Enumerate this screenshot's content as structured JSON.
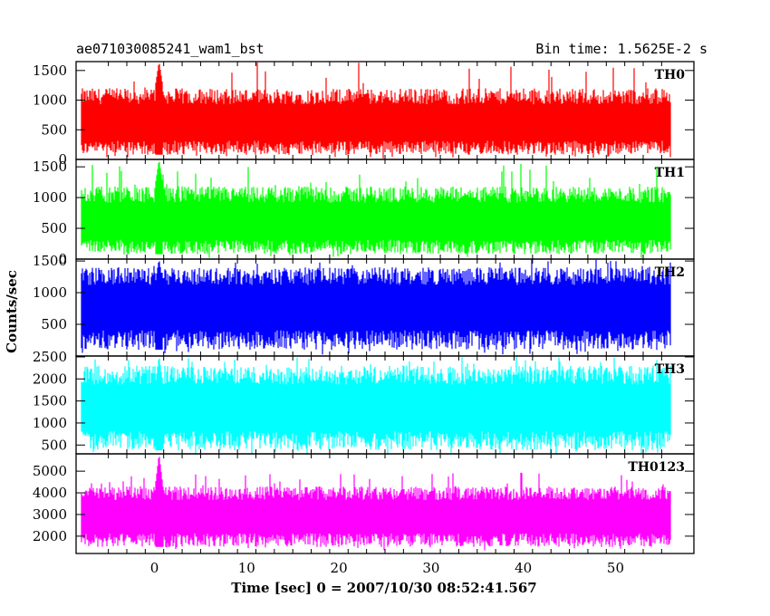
{
  "header": {
    "title": "ae071030085241_wam1_bst",
    "bin_time": "Bin time: 1.5625E-2 s"
  },
  "chart_data": {
    "type": "line",
    "title": "ae071030085241_wam1_bst",
    "xlabel": "Time [sec] 0 = 2007/10/30 08:52:41.567",
    "ylabel": "Counts/sec",
    "xlim": [
      -8.5,
      58.5
    ],
    "x_data_range": [
      -8,
      56
    ],
    "bin_time_s": 0.015625,
    "x_ticks": [
      0,
      10,
      20,
      30,
      40,
      50
    ],
    "panels": [
      {
        "name": "TH0",
        "color": "#ff0000",
        "ylim": [
          0,
          1650
        ],
        "y_ticks": [
          0,
          500,
          1000,
          1500
        ],
        "mean": 600,
        "band_low": 80,
        "band_high": 1200,
        "spike_max": 1650,
        "burst_x": 0.5,
        "burst_peak": 1650
      },
      {
        "name": "TH1",
        "color": "#00ff00",
        "ylim": [
          0,
          1620
        ],
        "y_ticks": [
          0,
          500,
          1000,
          1500
        ],
        "mean": 600,
        "band_low": 80,
        "band_high": 1180,
        "spike_max": 1600,
        "burst_x": 0.5,
        "burst_peak": 1620
      },
      {
        "name": "TH2",
        "color": "#0000ff",
        "ylim": [
          0,
          1530
        ],
        "y_ticks": [
          500,
          1000,
          1500
        ],
        "mean": 780,
        "band_low": 100,
        "band_high": 1400,
        "spike_max": 1530,
        "burst_x": 0.5,
        "burst_peak": 1530
      },
      {
        "name": "TH3",
        "color": "#00ffff",
        "ylim": [
          300,
          2520
        ],
        "y_ticks": [
          500,
          1000,
          1500,
          2000,
          2500
        ],
        "mean": 1350,
        "band_low": 380,
        "band_high": 2300,
        "spike_max": 2520,
        "burst_x": 0.5,
        "burst_peak": 2520
      },
      {
        "name": "TH0123",
        "color": "#ff00ff",
        "ylim": [
          1200,
          5800
        ],
        "y_ticks": [
          2000,
          3000,
          4000,
          5000
        ],
        "mean": 2900,
        "band_low": 1500,
        "band_high": 4300,
        "spike_max": 5000,
        "burst_x": 0.5,
        "burst_peak": 5800
      }
    ]
  }
}
